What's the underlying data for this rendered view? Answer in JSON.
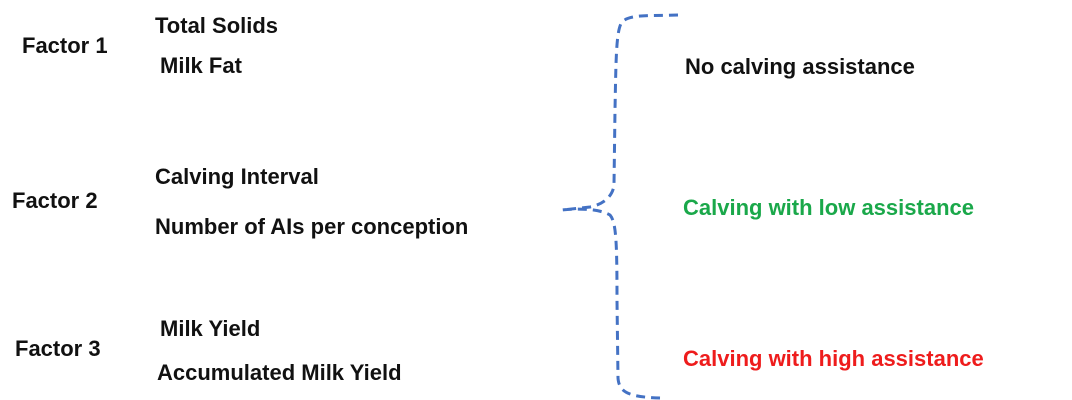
{
  "factors": [
    {
      "label": "Factor 1",
      "items": [
        "Total Solids",
        "Milk Fat"
      ]
    },
    {
      "label": "Factor 2",
      "items": [
        "Calving Interval",
        "Number of AIs per conception"
      ]
    },
    {
      "label": "Factor 3",
      "items": [
        "Milk Yield",
        "Accumulated Milk Yield"
      ]
    }
  ],
  "outcomes": [
    {
      "label": "No calving assistance"
    },
    {
      "label": "Calving with low assistance"
    },
    {
      "label": "Calving with high assistance"
    }
  ]
}
